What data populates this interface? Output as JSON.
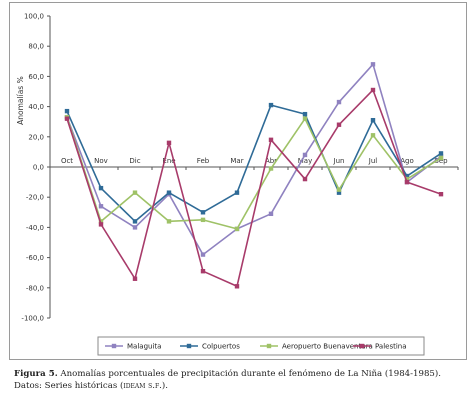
{
  "chart_data": {
    "type": "line",
    "ylabel": "Anomalías %",
    "xlabel": "",
    "title": "",
    "categories": [
      "Oct",
      "Nov",
      "Dic",
      "Ene",
      "Feb",
      "Mar",
      "Abr",
      "May",
      "Jun",
      "Jul",
      "Ago",
      "Sep"
    ],
    "ylim": [
      -100,
      100
    ],
    "yticks": [
      100,
      80,
      60,
      40,
      20,
      0,
      -20,
      -40,
      -60,
      -80,
      -100
    ],
    "ytick_labels": [
      "100,0",
      "80,0",
      "60,0",
      "40,0",
      "20,0",
      "0,0",
      "-20,0",
      "-40,0",
      "-60,0",
      "-80,0",
      "-100,0"
    ],
    "grid": false,
    "legend_position": "bottom",
    "series": [
      {
        "name": "Malaguita",
        "color": "#8f82c0",
        "values": [
          33,
          -26,
          -40,
          -18,
          -58,
          -41,
          -31,
          8,
          43,
          68,
          -10,
          7
        ]
      },
      {
        "name": "Colpuertos",
        "color": "#2f6b97",
        "values": [
          37,
          -14,
          -36,
          -17,
          -30,
          -17,
          41,
          35,
          -17,
          31,
          -6,
          9
        ]
      },
      {
        "name": "Aeropuerto Buenaventura",
        "color": "#9fc267",
        "values": [
          33,
          -36,
          -17,
          -36,
          -35,
          -41,
          -1,
          32,
          -15,
          21,
          -8,
          6
        ]
      },
      {
        "name": "Palestina",
        "color": "#a83b6a",
        "values": [
          32,
          -38,
          -74,
          16,
          -69,
          -79,
          18,
          -8,
          28,
          51,
          -10,
          -18
        ]
      }
    ]
  },
  "caption": {
    "figure_label": "Figura 5.",
    "line1": "Anomalías porcentuales de precipitación durante el fenómeno de La Niña (1984-1985).",
    "line2_prefix": "Datos: Series históricas (",
    "line2_source": "ideam s.f.",
    "line2_suffix": ")."
  }
}
